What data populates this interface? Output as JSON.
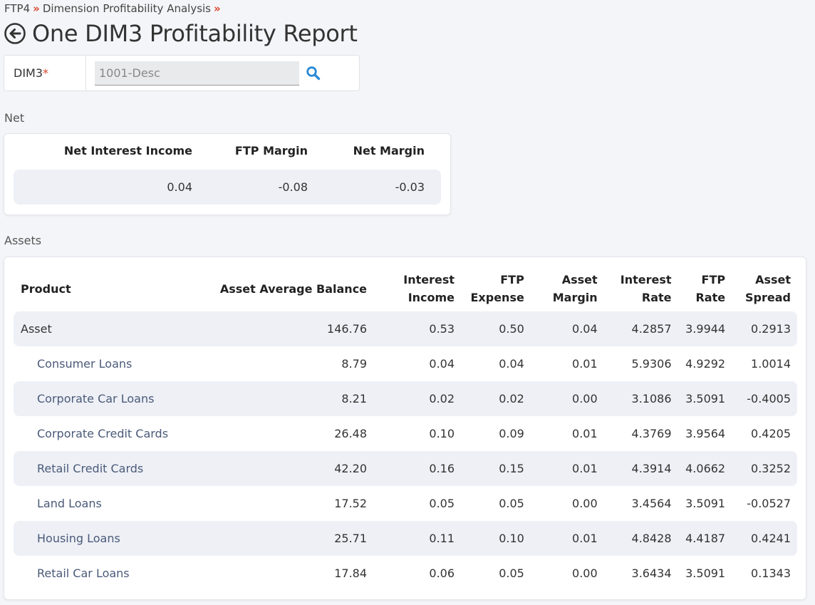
{
  "breadcrumb": {
    "items": [
      "FTP4",
      "Dimension Profitability Analysis"
    ],
    "separator": "»"
  },
  "page": {
    "title": "One DIM3 Profitability Report"
  },
  "filter": {
    "label": "DIM3",
    "required_mark": "*",
    "value": "1001-Desc"
  },
  "net": {
    "section_label": "Net",
    "headers": [
      "Net Interest Income",
      "FTP Margin",
      "Net Margin"
    ],
    "values": [
      "0.04",
      "-0.08",
      "-0.03"
    ]
  },
  "assets": {
    "section_label": "Assets",
    "headers": {
      "product": "Product",
      "balance": "Asset Average Balance",
      "interest_income": [
        "Interest",
        "Income"
      ],
      "ftp_expense": [
        "FTP",
        "Expense"
      ],
      "asset_margin": [
        "Asset",
        "Margin"
      ],
      "interest_rate": [
        "Interest",
        "Rate"
      ],
      "ftp_rate": [
        "FTP",
        "Rate"
      ],
      "asset_spread": [
        "Asset",
        "Spread"
      ]
    },
    "rows": [
      {
        "product": "Asset",
        "balance": "146.76",
        "interest_income": "0.53",
        "ftp_expense": "0.50",
        "asset_margin": "0.04",
        "interest_rate": "4.2857",
        "ftp_rate": "3.9944",
        "asset_spread": "0.2913"
      },
      {
        "product": "Consumer Loans",
        "balance": "8.79",
        "interest_income": "0.04",
        "ftp_expense": "0.04",
        "asset_margin": "0.01",
        "interest_rate": "5.9306",
        "ftp_rate": "4.9292",
        "asset_spread": "1.0014"
      },
      {
        "product": "Corporate Car Loans",
        "balance": "8.21",
        "interest_income": "0.02",
        "ftp_expense": "0.02",
        "asset_margin": "0.00",
        "interest_rate": "3.1086",
        "ftp_rate": "3.5091",
        "asset_spread": "-0.4005"
      },
      {
        "product": "Corporate Credit Cards",
        "balance": "26.48",
        "interest_income": "0.10",
        "ftp_expense": "0.09",
        "asset_margin": "0.01",
        "interest_rate": "4.3769",
        "ftp_rate": "3.9564",
        "asset_spread": "0.4205"
      },
      {
        "product": "Retail Credit Cards",
        "balance": "42.20",
        "interest_income": "0.16",
        "ftp_expense": "0.15",
        "asset_margin": "0.01",
        "interest_rate": "4.3914",
        "ftp_rate": "4.0662",
        "asset_spread": "0.3252"
      },
      {
        "product": "Land Loans",
        "balance": "17.52",
        "interest_income": "0.05",
        "ftp_expense": "0.05",
        "asset_margin": "0.00",
        "interest_rate": "3.4564",
        "ftp_rate": "3.5091",
        "asset_spread": "-0.0527"
      },
      {
        "product": "Housing Loans",
        "balance": "25.71",
        "interest_income": "0.11",
        "ftp_expense": "0.10",
        "asset_margin": "0.01",
        "interest_rate": "4.8428",
        "ftp_rate": "4.4187",
        "asset_spread": "0.4241"
      },
      {
        "product": "Retail Car Loans",
        "balance": "17.84",
        "interest_income": "0.06",
        "ftp_expense": "0.05",
        "asset_margin": "0.00",
        "interest_rate": "3.6434",
        "ftp_rate": "3.5091",
        "asset_spread": "0.1343"
      }
    ]
  },
  "colors": {
    "accent_red": "#d9442b",
    "search_blue": "#2a8ad6",
    "stripe": "#eef0f6",
    "child_text": "#4a5a78"
  }
}
